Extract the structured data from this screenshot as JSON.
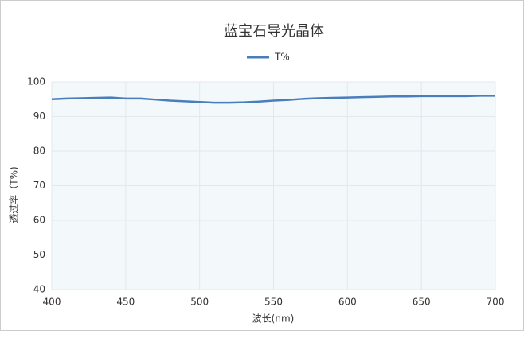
{
  "chart_data": {
    "type": "line",
    "title": "蓝宝石导光晶体",
    "x_label": "波长(nm)",
    "y_label": "透过率（T%)",
    "x": [
      400,
      410,
      420,
      430,
      440,
      450,
      460,
      470,
      480,
      490,
      500,
      510,
      520,
      530,
      540,
      550,
      560,
      570,
      580,
      590,
      600,
      610,
      620,
      630,
      640,
      650,
      660,
      670,
      680,
      690,
      700
    ],
    "series": [
      {
        "name": "T%",
        "color": "#4a7ebb",
        "values": [
          95.0,
          95.2,
          95.3,
          95.4,
          95.5,
          95.2,
          95.2,
          94.9,
          94.6,
          94.4,
          94.2,
          94.0,
          94.0,
          94.1,
          94.3,
          94.6,
          94.8,
          95.1,
          95.3,
          95.4,
          95.5,
          95.6,
          95.7,
          95.8,
          95.8,
          95.9,
          95.9,
          95.9,
          95.9,
          96.0,
          96.0
        ]
      }
    ],
    "xlim": [
      400,
      700
    ],
    "xticks": [
      400,
      450,
      500,
      550,
      600,
      650,
      700
    ],
    "ylim": [
      40,
      100
    ],
    "yticks": [
      40,
      50,
      60,
      70,
      80,
      90,
      100
    ],
    "grid": true
  }
}
